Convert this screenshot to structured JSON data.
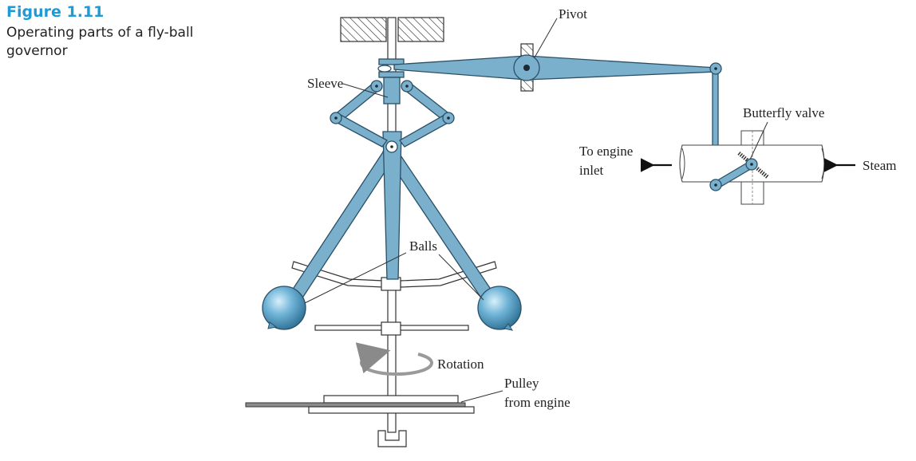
{
  "figure": {
    "number": "Figure 1.11",
    "caption": "Operating parts of a fly-ball governor"
  },
  "diagram": {
    "labels": {
      "pivot": "Pivot",
      "sleeve": "Sleeve",
      "butterfly_valve": "Butterfly valve",
      "to_engine_inlet_line1": "To engine",
      "to_engine_inlet_line2": "inlet",
      "steam": "Steam",
      "balls": "Balls",
      "rotation": "Rotation",
      "pulley_line1": "Pulley",
      "pulley_line2": "from engine"
    },
    "colors": {
      "accent": "#1e9ad6",
      "part_fill": "#7ab0cc",
      "part_stroke": "#2a4f66"
    }
  }
}
